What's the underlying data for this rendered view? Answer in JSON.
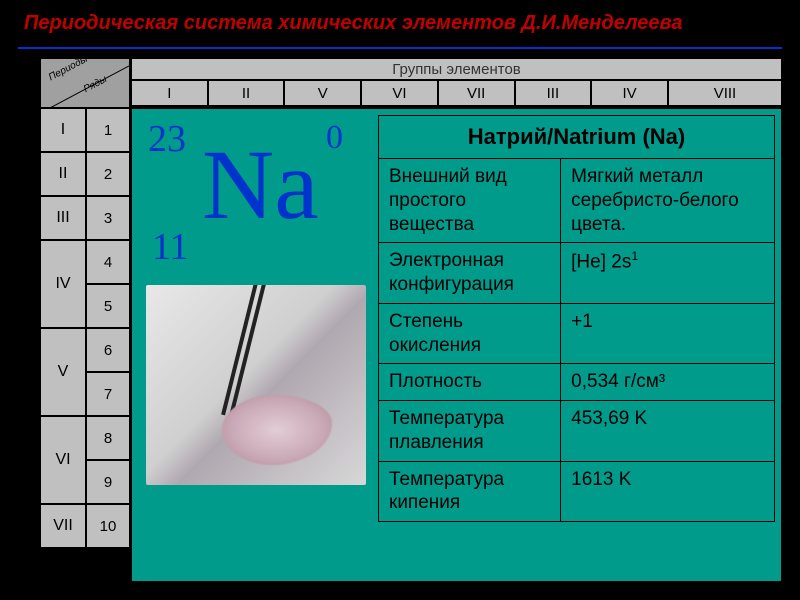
{
  "title": "Периодическая система химических элементов Д.И.Менделеева",
  "colors": {
    "background": "#000000",
    "panel": "#009b8b",
    "grey": "#c0c0c0",
    "grey_dark": "#a0a0a0",
    "title_red": "#c00000",
    "title_blue": "#0033cc",
    "border": "#000000"
  },
  "diag": {
    "periods": "Периоды",
    "rows": "Ряды"
  },
  "groups_label": "Группы элементов",
  "groups": [
    "I",
    "II",
    "V",
    "VI",
    "VII",
    "III",
    "IV",
    "VIII"
  ],
  "period_rows": [
    "1",
    "2",
    "3",
    "4",
    "5",
    "6",
    "7",
    "8",
    "9",
    "10"
  ],
  "period_labels": [
    "I",
    "II",
    "III",
    "IV",
    "V",
    "VI",
    "VII"
  ],
  "period_spans": [
    1,
    1,
    1,
    2,
    2,
    2,
    1
  ],
  "element": {
    "symbol": "Na",
    "atomic_number": "11",
    "mass": "23",
    "zero_marker": "0",
    "title": "Натрий/Natrium (Na)",
    "symbol_color": "#0033cc",
    "symbol_fontsize": 100,
    "mass_fontsize": 38
  },
  "properties": [
    {
      "label": "Внешний вид простого вещества",
      "value": "Мягкий металл серебристо-белого цвета."
    },
    {
      "label": "Электронная конфигурация",
      "value": "[He] 2s",
      "sup": "1"
    },
    {
      "label": "Степень окисления",
      "value": "+1"
    },
    {
      "label": "Плотность",
      "value": "0,534 г/см³"
    },
    {
      "label": "Температура плавления",
      "value": "453,69 K"
    },
    {
      "label": "Температура кипения",
      "value": "1613 K"
    }
  ]
}
